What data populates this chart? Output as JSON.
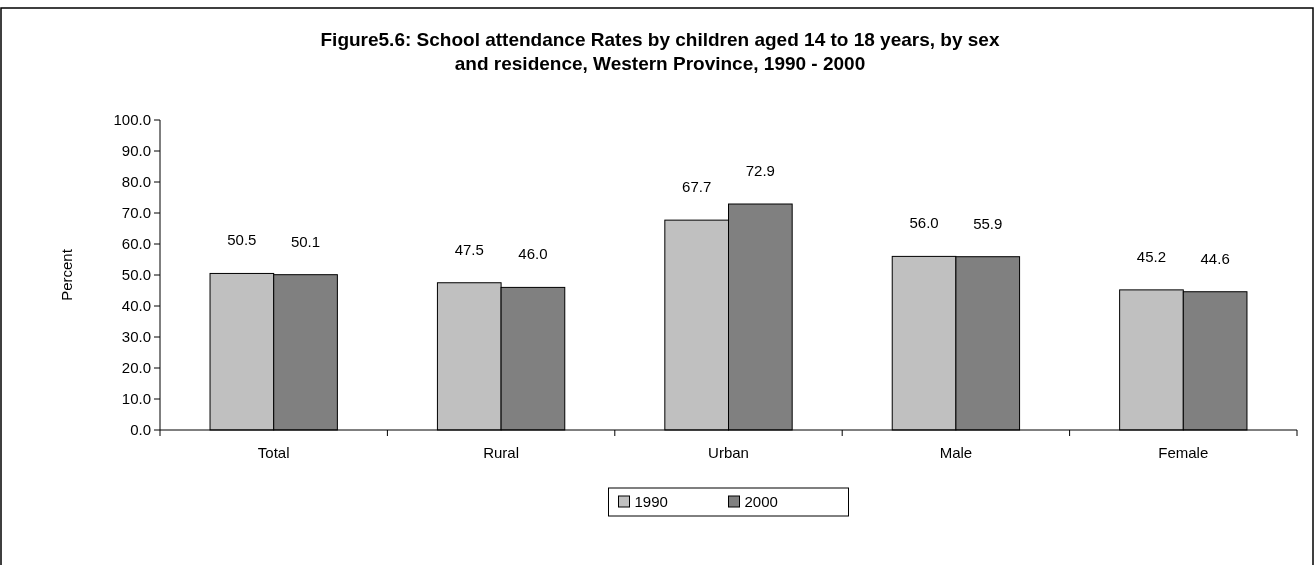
{
  "chart_data": {
    "type": "bar",
    "title": "Figure5.6: School attendance Rates by children aged 14 to 18 years, by  sex and residence, Western Province, 1990 - 2000",
    "ylabel": "Percent",
    "categories": [
      "Total",
      "Rural",
      "Urban",
      "Male",
      "Female"
    ],
    "series": [
      {
        "name": "1990",
        "color": "#c0c0c0",
        "values": [
          50.5,
          47.5,
          67.7,
          56.0,
          45.2
        ],
        "value_labels": [
          "50.5",
          "47.5",
          "67.7",
          "56.0",
          "45.2"
        ]
      },
      {
        "name": "2000",
        "color": "#808080",
        "values": [
          50.1,
          46.0,
          72.9,
          55.9,
          44.6
        ],
        "value_labels": [
          "50.1",
          "46.0",
          "72.9",
          "55.9",
          "44.6"
        ]
      }
    ],
    "ylim": [
      0,
      100
    ],
    "yticks": [
      {
        "value": 0,
        "label": "0.0"
      },
      {
        "value": 10,
        "label": "10.0"
      },
      {
        "value": 20,
        "label": "20.0"
      },
      {
        "value": 30,
        "label": "30.0"
      },
      {
        "value": 40,
        "label": "40.0"
      },
      {
        "value": 50,
        "label": "50.0"
      },
      {
        "value": 60,
        "label": "60.0"
      },
      {
        "value": 70,
        "label": "70.0"
      },
      {
        "value": 80,
        "label": "80.0"
      },
      {
        "value": 90,
        "label": "90.0"
      },
      {
        "value": 100,
        "label": "100.0"
      }
    ],
    "grid": false,
    "legend": "bottom"
  }
}
